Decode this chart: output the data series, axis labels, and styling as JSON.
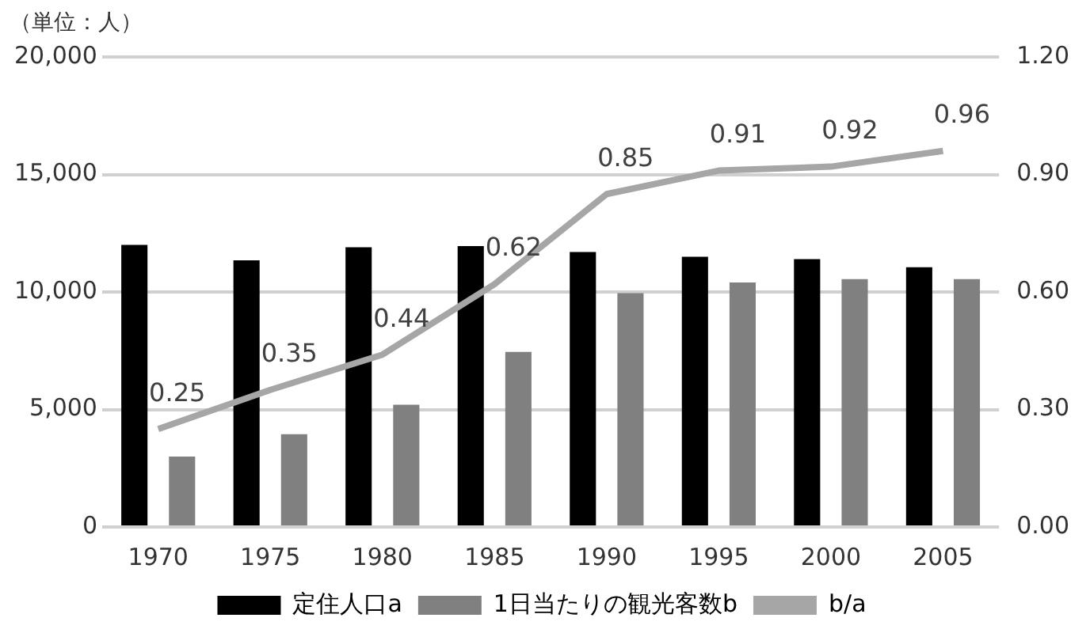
{
  "chart_data": {
    "type": "bar",
    "ylabel": "（単位：人）",
    "categories": [
      "1970",
      "1975",
      "1980",
      "1985",
      "1990",
      "1995",
      "2000",
      "2005"
    ],
    "series": [
      {
        "name": "定住人口a",
        "color": "#000000",
        "values": [
          12000,
          11350,
          11900,
          11950,
          11700,
          11500,
          11400,
          11050
        ]
      },
      {
        "name": "1日当たりの観光客数b",
        "color": "#808080",
        "values": [
          3000,
          3950,
          5200,
          7450,
          9950,
          10400,
          10550,
          10550
        ]
      },
      {
        "name": "b/a",
        "type": "line",
        "axis": "y2",
        "color": "#a6a6a6",
        "values": [
          0.25,
          0.35,
          0.44,
          0.62,
          0.85,
          0.91,
          0.92,
          0.96
        ],
        "data_labels": true
      }
    ],
    "ylim": [
      0,
      20000
    ],
    "yticks": [
      {
        "value": 0,
        "label": "0"
      },
      {
        "value": 5000,
        "label": "5,000"
      },
      {
        "value": 10000,
        "label": "10,000"
      },
      {
        "value": 15000,
        "label": "15,000"
      },
      {
        "value": 20000,
        "label": "20,000"
      }
    ],
    "y2lim": [
      0,
      1.2
    ],
    "y2ticks": [
      {
        "value": 0,
        "label": "0.00"
      },
      {
        "value": 0.3,
        "label": "0.30"
      },
      {
        "value": 0.6,
        "label": "0.60"
      },
      {
        "value": 0.9,
        "label": "0.90"
      },
      {
        "value": 1.2,
        "label": "1.20"
      }
    ],
    "grid": "y",
    "legend": "bottom",
    "marker": "none"
  }
}
